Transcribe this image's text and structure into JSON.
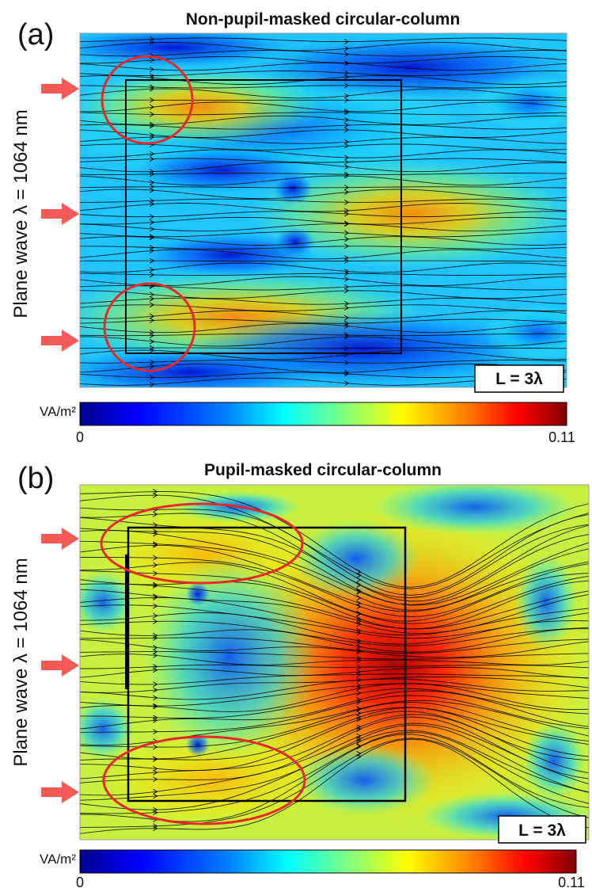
{
  "colors": {
    "arrow": "#f25a5a",
    "ellipse": "#e8282a",
    "box": "#000000",
    "streamline": "#000000"
  },
  "colormap": [
    "#00008f",
    "#0000ff",
    "#0080ff",
    "#00ffff",
    "#80ff80",
    "#ffff00",
    "#ff8000",
    "#ff0000",
    "#800000"
  ],
  "panels": [
    {
      "label": "(a)",
      "title": "Non-pupil-masked circular-column",
      "ylabel": "Plane wave λ = 1064 nm",
      "length_label": "L = 3λ",
      "colorbar": {
        "unit": "VA/m²",
        "min_label": "0",
        "max_label": "0.11",
        "min": 0,
        "max": 0.11
      },
      "field": {
        "background_level": 0.32,
        "hot_level": 0.72,
        "incident_arrows": 3,
        "highlight_ellipses": 2
      }
    },
    {
      "label": "(b)",
      "title": "Pupil-masked circular-column",
      "ylabel": "Plane wave λ = 1064 nm",
      "length_label": "L = 3λ",
      "colorbar": {
        "unit": "VA/m²",
        "min_label": "0",
        "max_label": "0.11",
        "min": 0,
        "max": 0.11
      },
      "field": {
        "background_level": 0.58,
        "hot_level": 0.95,
        "incident_arrows": 3,
        "highlight_ellipses": 2
      }
    }
  ]
}
